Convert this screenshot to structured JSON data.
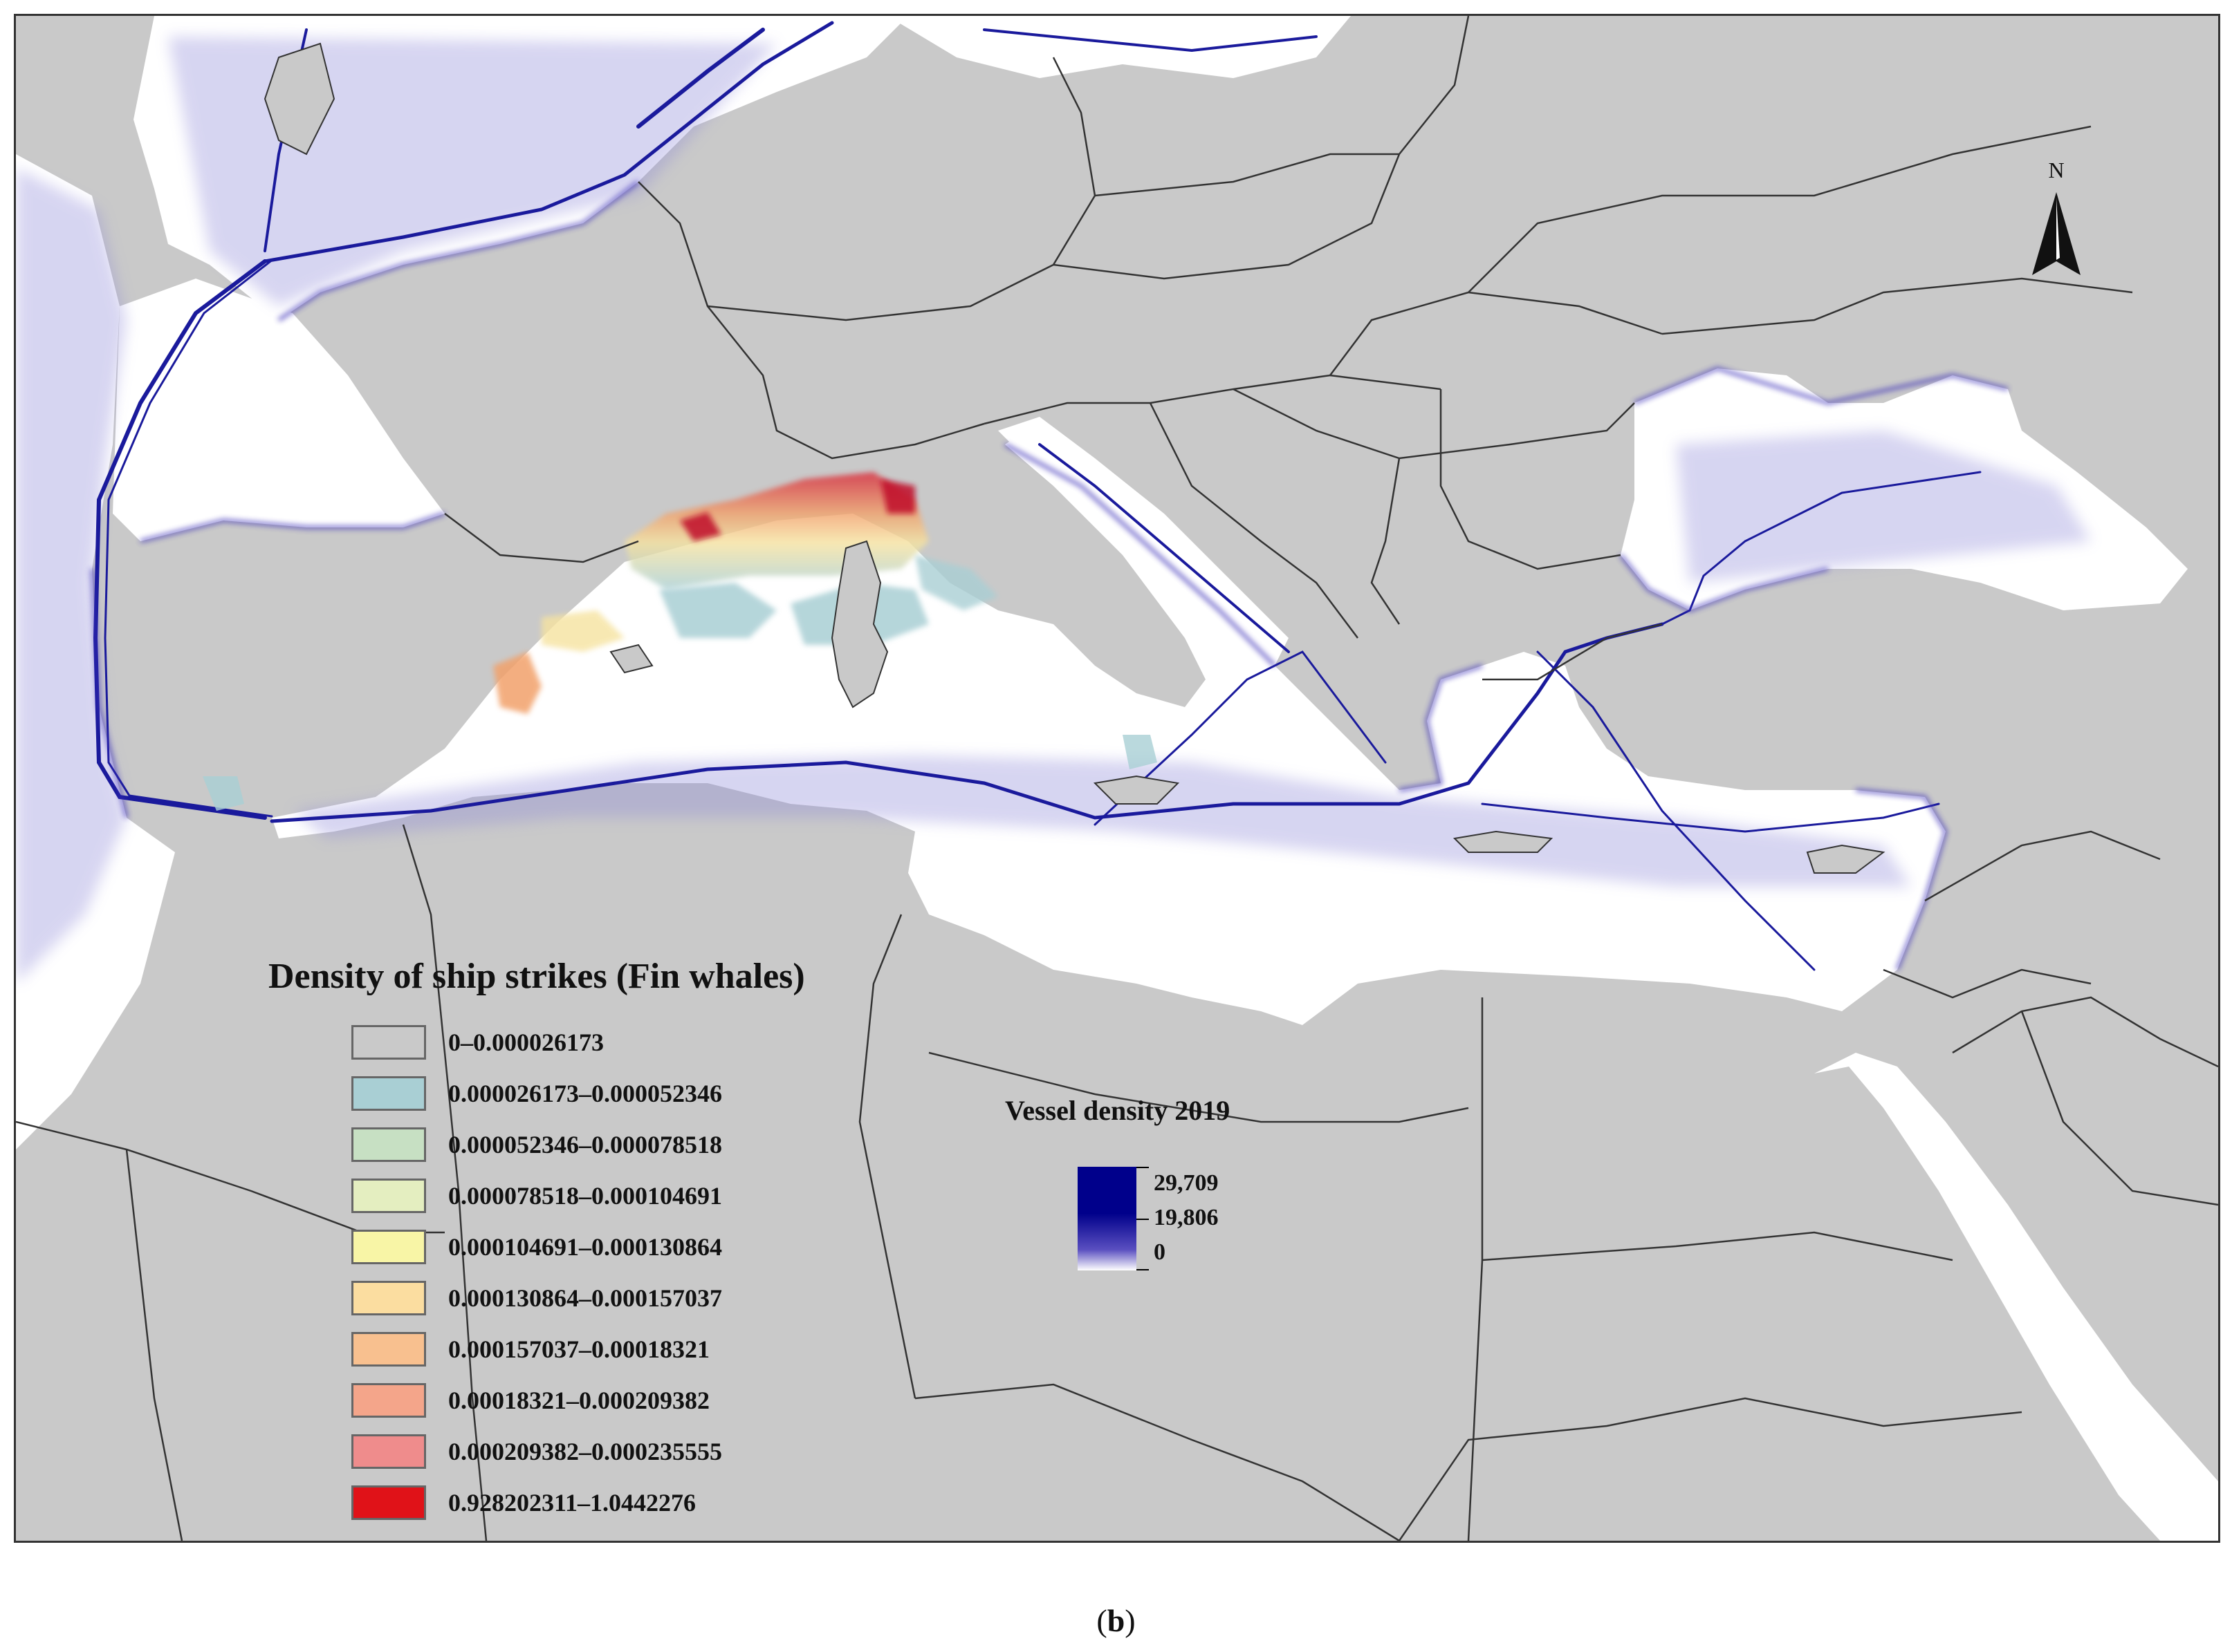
{
  "colors": {
    "land": "#c9c9c9",
    "sea": "#ffffff",
    "border": "#333333",
    "shipping_lane": "#1a1a9c",
    "shipping_haze": "#8d88d8",
    "strike_high": "#e21e1e",
    "strike_mid": "#f2a16b",
    "strike_low": "#a9cfd4"
  },
  "ship_strike_legend": {
    "title": "Density of ship strikes (Fin whales)",
    "classes": [
      {
        "label": "0–0.000026173",
        "color": "#c9c9c9"
      },
      {
        "label": "0.000026173–0.000052346",
        "color": "#a9cfd4"
      },
      {
        "label": "0.000052346–0.000078518",
        "color": "#c7e0c3"
      },
      {
        "label": "0.000078518–0.000104691",
        "color": "#e4eec0"
      },
      {
        "label": "0.000104691–0.000130864",
        "color": "#f8f5a6"
      },
      {
        "label": "0.000130864–0.000157037",
        "color": "#fbdda0"
      },
      {
        "label": "0.000157037–0.00018321",
        "color": "#f8c08f"
      },
      {
        "label": "0.00018321–0.000209382",
        "color": "#f4a58a"
      },
      {
        "label": "0.000209382–0.000235555",
        "color": "#ef8c8c"
      },
      {
        "label": "0.928202311–1.0442276",
        "color": "#e01218"
      }
    ]
  },
  "vessel_legend": {
    "title": "Vessel density 2019",
    "max_label": "29,709",
    "mid_label": "19,806",
    "min_label": "0"
  },
  "north_arrow": {
    "label": "N"
  },
  "panel_label": {
    "open": "(",
    "letter": "b",
    "close": ")"
  }
}
